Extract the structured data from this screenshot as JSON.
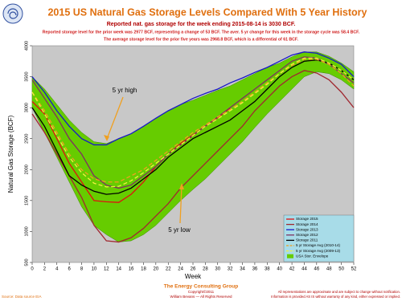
{
  "chart_data": {
    "type": "line",
    "title": "2015 US Natural Gas Storage Levels Compared With 5 Year History",
    "subtitle": "Reported nat. gas storage for the week ending 2015-08-14 is 3030 BCF.",
    "notes": [
      "Reported storage level for the prior week was 2977 BCF, representing a change of 53 BCF. The aver. 5 yr change for this week in the storage cycle was 58.4 BCF.",
      "The average storage level for the prior five years was 2968.8 BCF, which is a differential of 61 BCF."
    ],
    "x_label": "Week",
    "y_label": "Natural Gas Storage (BCF)",
    "x": [
      0,
      2,
      4,
      6,
      8,
      10,
      12,
      14,
      16,
      18,
      20,
      22,
      24,
      26,
      28,
      30,
      32,
      34,
      36,
      38,
      40,
      42,
      44,
      46,
      48,
      50,
      52
    ],
    "xlim": [
      0,
      52
    ],
    "xticks": [
      0,
      2,
      4,
      6,
      8,
      10,
      12,
      14,
      16,
      18,
      20,
      22,
      24,
      26,
      28,
      30,
      32,
      34,
      36,
      38,
      40,
      42,
      44,
      46,
      48,
      50,
      52
    ],
    "ylim": [
      500,
      4000
    ],
    "yticks": [
      500,
      1000,
      1500,
      2000,
      2500,
      3000,
      3500,
      4000
    ],
    "envelope": {
      "name": "USA Stor. Envelope",
      "color": "#66cc00",
      "high": [
        3500,
        3300,
        3050,
        2800,
        2600,
        2450,
        2420,
        2500,
        2580,
        2700,
        2830,
        2950,
        3050,
        3120,
        3200,
        3280,
        3350,
        3450,
        3550,
        3650,
        3720,
        3820,
        3900,
        3900,
        3830,
        3720,
        3580
      ],
      "low": [
        3000,
        2600,
        2200,
        1800,
        1400,
        1100,
        950,
        830,
        850,
        950,
        1100,
        1300,
        1500,
        1680,
        1850,
        2050,
        2250,
        2450,
        2680,
        2900,
        3100,
        3300,
        3500,
        3580,
        3550,
        3450,
        3300
      ]
    },
    "series": [
      {
        "name": "Storage 2015",
        "color": "#e01010",
        "dash": false,
        "values": [
          3100,
          2900,
          2500,
          2100,
          1800,
          1500,
          1480,
          1470,
          1600,
          1800,
          2050,
          2250,
          2420,
          2560,
          2700,
          2840,
          2990,
          null,
          null,
          null,
          null,
          null,
          null,
          null,
          null,
          null,
          null
        ]
      },
      {
        "name": "Storage 2014",
        "color": "#a02830",
        "dash": false,
        "values": [
          2900,
          2600,
          2250,
          1900,
          1550,
          1100,
          850,
          830,
          900,
          1050,
          1250,
          1450,
          1700,
          1900,
          2100,
          2300,
          2500,
          2700,
          2950,
          3150,
          3350,
          3500,
          3600,
          3560,
          3450,
          3250,
          3000
        ]
      },
      {
        "name": "Storage 2013",
        "color": "#1818c8",
        "dash": false,
        "values": [
          3500,
          3250,
          2950,
          2700,
          2500,
          2400,
          2400,
          2500,
          2580,
          2700,
          2830,
          2950,
          3050,
          3150,
          3230,
          3300,
          3400,
          3480,
          3570,
          3650,
          3750,
          3850,
          3900,
          3880,
          3800,
          3700,
          3500
        ]
      },
      {
        "name": "Storage 2012",
        "color": "#803060",
        "dash": false,
        "values": [
          3450,
          3150,
          2850,
          2500,
          2250,
          1900,
          1750,
          1700,
          1750,
          1900,
          2050,
          2250,
          2400,
          2550,
          2700,
          2850,
          3000,
          3150,
          3300,
          3450,
          3600,
          3750,
          3820,
          3800,
          3700,
          3550,
          3400
        ]
      },
      {
        "name": "Storage 2011",
        "color": "#000000",
        "dash": false,
        "values": [
          3000,
          2700,
          2300,
          1900,
          1750,
          1650,
          1600,
          1620,
          1700,
          1850,
          2000,
          2200,
          2350,
          2500,
          2600,
          2700,
          2800,
          2950,
          3100,
          3300,
          3500,
          3650,
          3750,
          3770,
          3720,
          3600,
          3450
        ]
      },
      {
        "name": "5 yr Storage Avg (2010-14)",
        "color": "#f0a020",
        "dash": true,
        "values": [
          3250,
          2950,
          2600,
          2250,
          2000,
          1850,
          1800,
          1800,
          1900,
          2000,
          2150,
          2300,
          2450,
          2600,
          2720,
          2850,
          2970,
          3100,
          3250,
          3400,
          3550,
          3680,
          3780,
          3780,
          3700,
          3550,
          3350
        ]
      },
      {
        "name": "5 yr Storage Avg (2009-13)",
        "color": "#f0f040",
        "dash": true,
        "values": [
          3250,
          2900,
          2550,
          2200,
          1950,
          1780,
          1720,
          1730,
          1820,
          1950,
          2100,
          2250,
          2400,
          2550,
          2700,
          2820,
          2950,
          3080,
          3230,
          3380,
          3550,
          3700,
          3800,
          3800,
          3720,
          3600,
          3450
        ]
      }
    ],
    "annotations": [
      "5 yr high",
      "5 yr low"
    ],
    "footer": {
      "org": "The Energy Consulting Group",
      "copyright": "Copyright©2011",
      "author": "William Bevans — All Rights Reserved",
      "source": "Source: Data source EIA",
      "disclaimer": [
        "All representations are approximate and are subject to change without notification.",
        "Information is provided AS IS without warranty of any kind, either expressed or implied."
      ]
    }
  }
}
